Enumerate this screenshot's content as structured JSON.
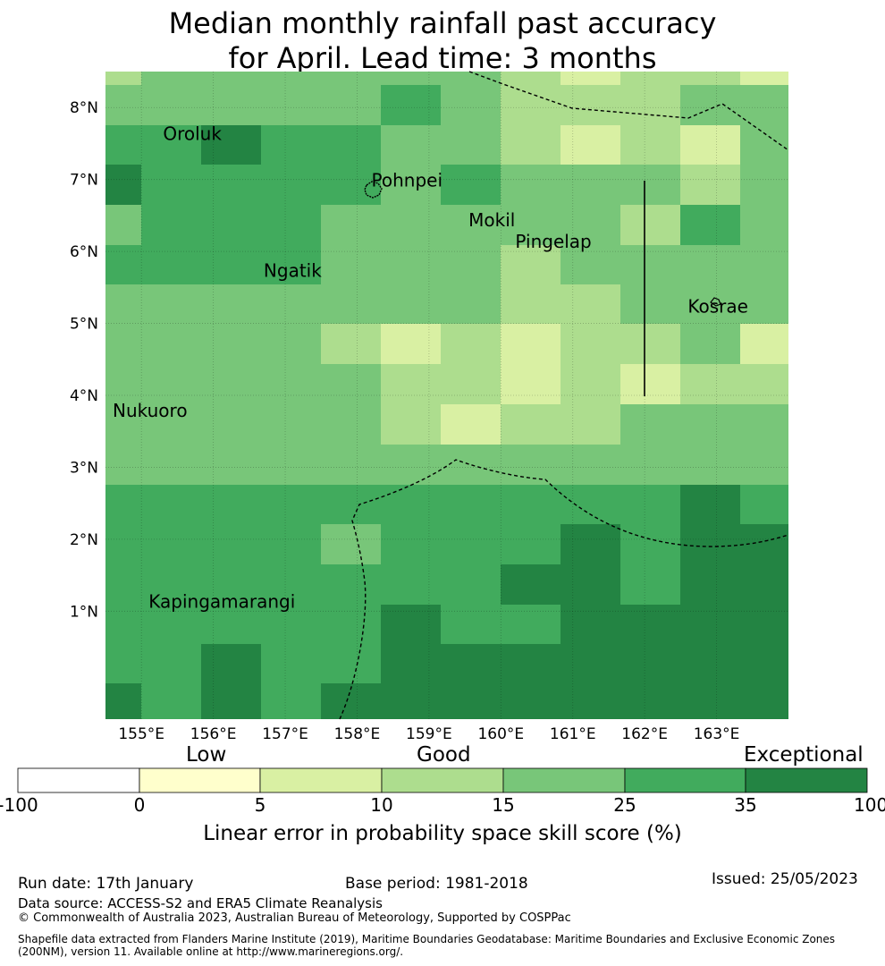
{
  "title": {
    "line1": "Median monthly rainfall past accuracy",
    "line2": "for April. Lead time: 3 months"
  },
  "map": {
    "lon_range": [
      154.5,
      164.0
    ],
    "lat_range": [
      -0.5,
      8.5
    ],
    "lon_ticks": [
      "155°E",
      "156°E",
      "157°E",
      "158°E",
      "159°E",
      "160°E",
      "161°E",
      "162°E",
      "163°E"
    ],
    "lat_ticks": [
      "8°N",
      "7°N",
      "6°N",
      "5°N",
      "4°N",
      "3°N",
      "2°N",
      "1°N"
    ],
    "places": [
      {
        "name": "Oroluk",
        "lon": 155.3,
        "lat": 7.55
      },
      {
        "name": "Pohnpei",
        "lon": 158.2,
        "lat": 6.9
      },
      {
        "name": "Mokil",
        "lon": 159.55,
        "lat": 6.35
      },
      {
        "name": "Pingelap",
        "lon": 160.2,
        "lat": 6.05
      },
      {
        "name": "Ngatik",
        "lon": 156.7,
        "lat": 5.65
      },
      {
        "name": "Kosrae",
        "lon": 162.6,
        "lat": 5.15
      },
      {
        "name": "Nukuoro",
        "lon": 154.6,
        "lat": 3.7
      },
      {
        "name": "Kapingamarangi",
        "lon": 155.1,
        "lat": 1.05
      }
    ]
  },
  "colorbar": {
    "category_low": "Low",
    "category_good": "Good",
    "category_exceptional": "Exceptional",
    "ticks": [
      "-100",
      "0",
      "5",
      "10",
      "15",
      "25",
      "35",
      "100"
    ],
    "colors": [
      "#ffffff",
      "#ffffcc",
      "#d9f0a3",
      "#addd8e",
      "#78c679",
      "#41ab5d",
      "#238443"
    ],
    "label": "Linear error in probability space skill score (%)"
  },
  "footer": {
    "run_date": "Run date: 17th January",
    "base_period": "Base period: 1981-2018",
    "issued": "Issued: 25/05/2023",
    "data_source": "Data source: ACCESS-S2 and ERA5 Climate Reanalysis",
    "copyright": "© Commonwealth of Australia 2023, Australian Bureau of Meteorology, Supported by COSPPac",
    "shapefile_line1": "Shapefile data extracted from Flanders Marine Institute (2019), Maritime Boundaries Geodatabase: Maritime Boundaries and Exclusive Economic Zones",
    "shapefile_line2": "(200NM), version 11. Available online at http://www.marineregions.org/."
  }
}
